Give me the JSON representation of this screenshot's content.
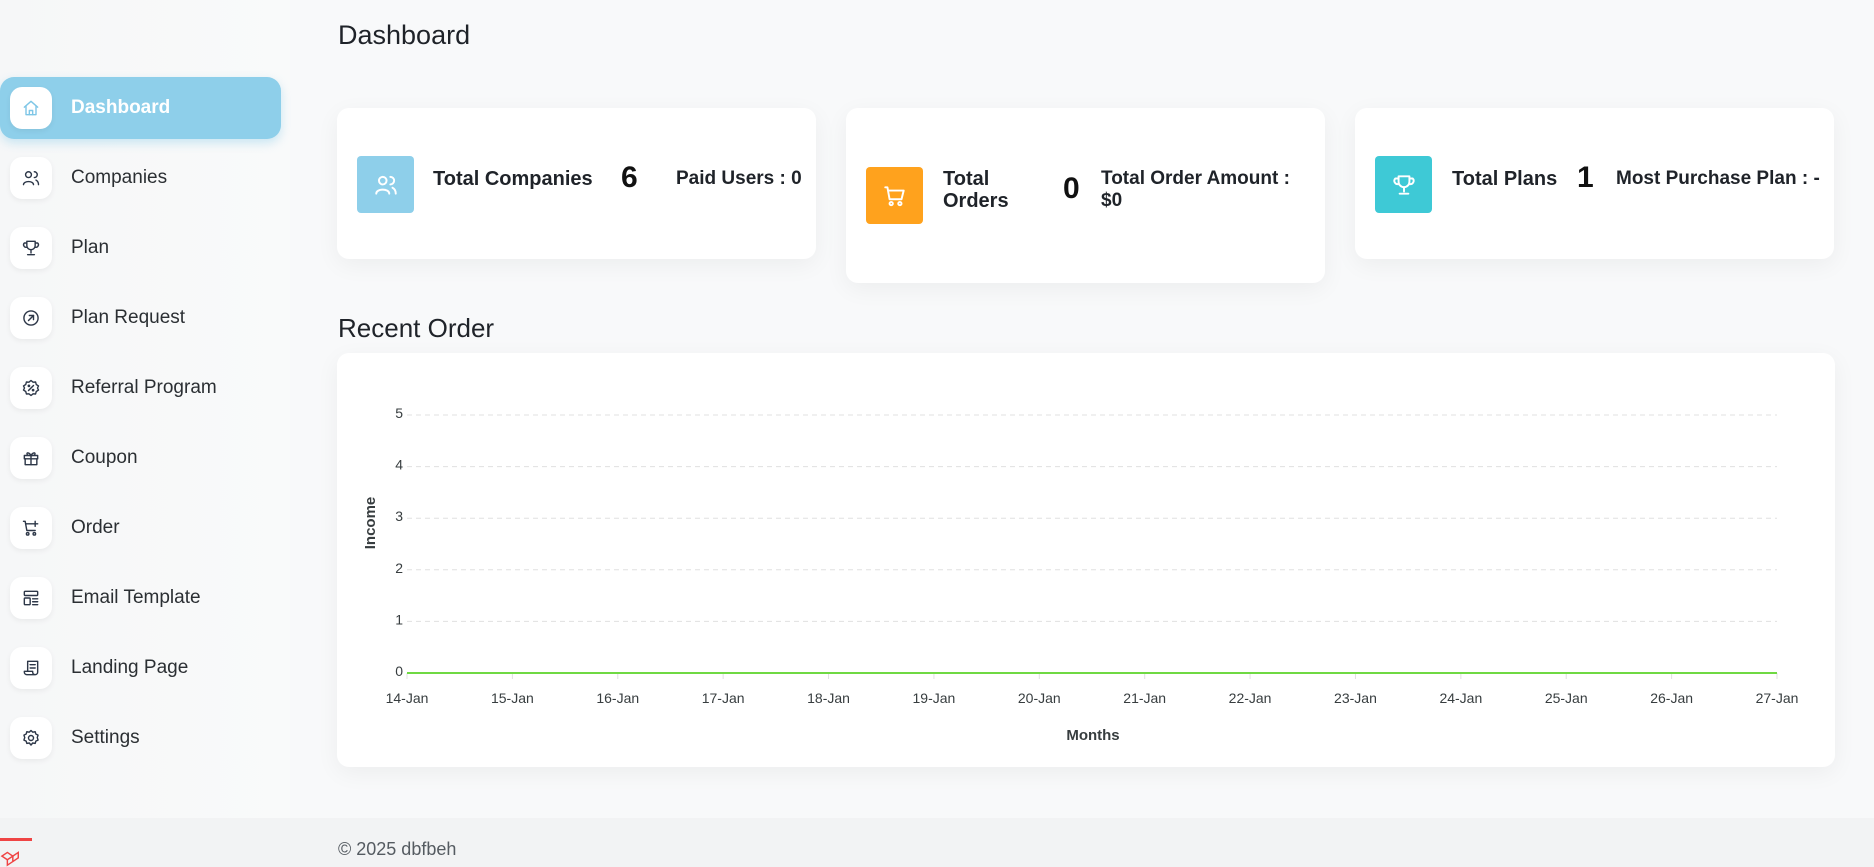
{
  "header": {
    "title": "Dashboard"
  },
  "sidebar": {
    "items": [
      {
        "label": "Dashboard",
        "icon": "home-icon",
        "active": true
      },
      {
        "label": "Companies",
        "icon": "users-icon"
      },
      {
        "label": "Plan",
        "icon": "trophy-icon"
      },
      {
        "label": "Plan Request",
        "icon": "arrow-circle-icon"
      },
      {
        "label": "Referral Program",
        "icon": "discount-icon"
      },
      {
        "label": "Coupon",
        "icon": "gift-icon"
      },
      {
        "label": "Order",
        "icon": "cart-plus-icon"
      },
      {
        "label": " Email Template",
        "icon": "template-icon"
      },
      {
        "label": "Landing Page",
        "icon": "document-icon"
      },
      {
        "label": "Settings",
        "icon": "gear-icon"
      }
    ]
  },
  "stats": [
    {
      "label": "Total Companies",
      "value": "6",
      "sub": "Paid Users : 0",
      "icon": "users-icon",
      "color": "#8ecfea"
    },
    {
      "label": "Total Orders",
      "value": "0",
      "sub": "Total Order Amount : $0",
      "icon": "cart-icon",
      "color": "#ffa21d"
    },
    {
      "label": "Total Plans",
      "value": "1",
      "sub": "Most Purchase Plan : -",
      "icon": "trophy-icon",
      "color": "#3ec9d6"
    }
  ],
  "recent_order": {
    "title": "Recent Order"
  },
  "chart_data": {
    "type": "line",
    "categories": [
      "14-Jan",
      "15-Jan",
      "16-Jan",
      "17-Jan",
      "18-Jan",
      "19-Jan",
      "20-Jan",
      "21-Jan",
      "22-Jan",
      "23-Jan",
      "24-Jan",
      "25-Jan",
      "26-Jan",
      "27-Jan"
    ],
    "series": [
      {
        "values": [
          0,
          0,
          0,
          0,
          0,
          0,
          0,
          0,
          0,
          0,
          0,
          0,
          0,
          0
        ],
        "color": "#6fd943"
      }
    ],
    "xlabel": "Months",
    "ylabel": "Income",
    "ylim": [
      0,
      5
    ],
    "yticks": [
      "0",
      "1",
      "2",
      "3",
      "4",
      "5"
    ],
    "grid": true
  },
  "footer": {
    "text": "© 2025 dbfbeh"
  }
}
